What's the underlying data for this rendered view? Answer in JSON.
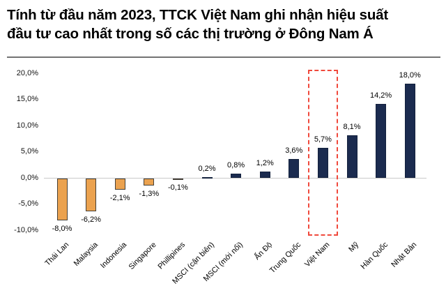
{
  "header": {
    "title_line1": "Tính từ đầu năm 2023, TTCK Việt Nam ghi nhận hiệu suất",
    "title_line2": "đầu tư cao nhất trong số các thị trường ở Đông Nam Á"
  },
  "chart_data": {
    "type": "bar",
    "categories": [
      "Thái Lan",
      "Malaysia",
      "Indonesia",
      "Singapore",
      "Phillipines",
      "MSCI (cận biên)",
      "MSCI (mới nổi)",
      "Ấn Độ",
      "Trung Quốc",
      "Việt Nam",
      "Mỹ",
      "Hàn Quốc",
      "Nhật Bản"
    ],
    "values": [
      -8.0,
      -6.2,
      -2.1,
      -1.3,
      -0.1,
      0.2,
      0.8,
      1.2,
      3.6,
      5.7,
      8.1,
      14.2,
      18.0
    ],
    "value_labels": [
      "-8,0%",
      "-6,2%",
      "-2,1%",
      "-1,3%",
      "-0,1%",
      "0,2%",
      "0,8%",
      "1,2%",
      "3,6%",
      "5,7%",
      "8,1%",
      "14,2%",
      "18,0%"
    ],
    "y_ticks": [
      {
        "value": 20,
        "label": "20,0%"
      },
      {
        "value": 15,
        "label": "15,0%"
      },
      {
        "value": 10,
        "label": "10,0%"
      },
      {
        "value": 5,
        "label": "5,0%"
      },
      {
        "value": 0,
        "label": "0,0%"
      },
      {
        "value": -5,
        "label": "-5,0%"
      },
      {
        "value": -10,
        "label": "-10,0%"
      }
    ],
    "ylim": [
      -10,
      20
    ],
    "grid": false,
    "legend": "none",
    "highlight_category": "Việt Nam",
    "highlight_index": 9,
    "colors": {
      "positive_bar": "#1B2B4F",
      "positive_border": "#13213D",
      "negative_bar": "#EBA24F",
      "negative_border": "#454038",
      "highlight_box": "#F0493C",
      "axis_line": "#C9C9C9",
      "label_text": "#000000"
    }
  }
}
